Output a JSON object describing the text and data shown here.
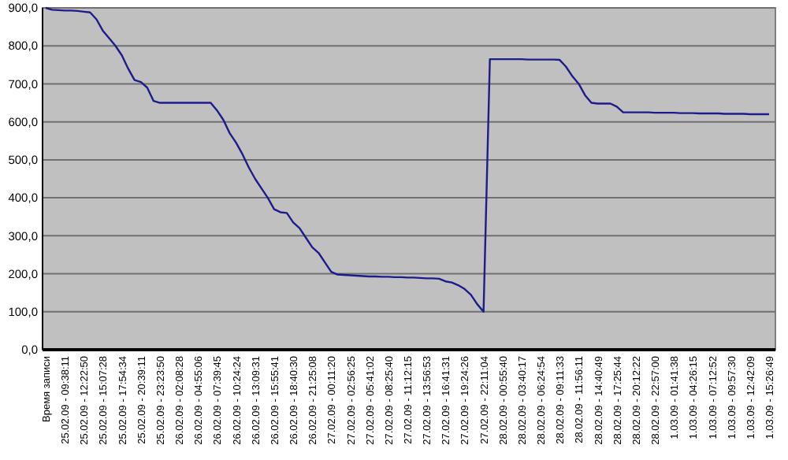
{
  "chart_data": {
    "type": "line",
    "categories": [
      "Время записи",
      null,
      null,
      "25.02.09 - 09:38:11",
      null,
      null,
      "25.02.09 - 12:22:50",
      null,
      null,
      "25.02.09 - 15:07:28",
      null,
      null,
      "25.02.09 - 17:54:34",
      null,
      null,
      "25.02.09 - 20:39:11",
      null,
      null,
      "25.02.09 - 23:23:50",
      null,
      null,
      "26.02.09 - 02:08:28",
      null,
      null,
      "26.02.09 - 04:55:06",
      null,
      null,
      "26.02.09 - 07:39:45",
      null,
      null,
      "26.02.09 - 10:24:24",
      null,
      null,
      "26.02.09 - 13:09:31",
      null,
      null,
      "26.02.09 - 15:55:41",
      null,
      null,
      "26.02.09 - 18:40:30",
      null,
      null,
      "26.02.09 - 21:25:08",
      null,
      null,
      "27.02.09 - 00:11:20",
      null,
      null,
      "27.02.09 - 02:56:25",
      null,
      null,
      "27.02.09 - 05:41:02",
      null,
      null,
      "27.02.09 - 08:25:40",
      null,
      null,
      "27.02.09 - 11:12:15",
      null,
      null,
      "27.02.09 - 13:56:53",
      null,
      null,
      "27.02.09 - 16:41:31",
      null,
      null,
      "27.02.09 - 19:24:26",
      null,
      null,
      "27.02.09 - 22:11:04",
      null,
      null,
      "28.02.09 - 00:55:40",
      null,
      null,
      "28.02.09 - 03:40:17",
      null,
      null,
      "28.02.09 - 06:24:54",
      null,
      null,
      "28.02.09 - 09:11:33",
      null,
      null,
      "28.02.09 - 11:56:11",
      null,
      null,
      "28.02.09 - 14:40:49",
      null,
      null,
      "28.02.09 - 17:25:44",
      null,
      null,
      "28.02.09 - 20:12:22",
      null,
      null,
      "28.02.09 - 22:57:00",
      null,
      null,
      "1.03.09 - 01:41:38",
      null,
      null,
      "1.03.09 - 04:26:15",
      null,
      null,
      "1.03.09 - 07:12:52",
      null,
      null,
      "1.03.09 - 09:57:30",
      null,
      null,
      "1.03.09 - 12:42:09",
      null,
      null,
      "1.03.09 - 15:26:49"
    ],
    "series": [
      {
        "color": "#1c1c8c",
        "values": [
          900,
          895,
          894,
          893,
          893,
          892,
          890,
          888,
          870,
          840,
          820,
          800,
          775,
          740,
          710,
          705,
          690,
          655,
          650,
          650,
          650,
          650,
          650,
          650,
          650,
          650,
          650,
          630,
          605,
          570,
          545,
          515,
          480,
          450,
          425,
          400,
          370,
          362,
          360,
          335,
          320,
          295,
          270,
          255,
          230,
          205,
          198,
          197,
          196,
          195,
          194,
          193,
          193,
          192,
          192,
          191,
          191,
          190,
          190,
          189,
          188,
          188,
          187,
          180,
          177,
          170,
          160,
          145,
          120,
          100,
          765,
          765,
          765,
          765,
          765,
          765,
          764,
          764,
          764,
          764,
          764,
          763,
          745,
          720,
          700,
          670,
          650,
          648,
          648,
          648,
          640,
          625,
          625,
          625,
          625,
          625,
          624,
          624,
          624,
          624,
          623,
          623,
          623,
          622,
          622,
          622,
          622,
          621,
          621,
          621,
          621,
          620,
          620,
          620,
          620
        ]
      }
    ],
    "ylim": [
      0,
      900
    ],
    "yticks": [
      {
        "value": 0,
        "label": "0,0"
      },
      {
        "value": 100,
        "label": "100,0"
      },
      {
        "value": 200,
        "label": "200,0"
      },
      {
        "value": 300,
        "label": "300,0"
      },
      {
        "value": 400,
        "label": "400,0"
      },
      {
        "value": 500,
        "label": "500,0"
      },
      {
        "value": 600,
        "label": "600,0"
      },
      {
        "value": 700,
        "label": "700,0"
      },
      {
        "value": 800,
        "label": "800,0"
      },
      {
        "value": 900,
        "label": "900,0"
      }
    ],
    "grid": "y"
  }
}
